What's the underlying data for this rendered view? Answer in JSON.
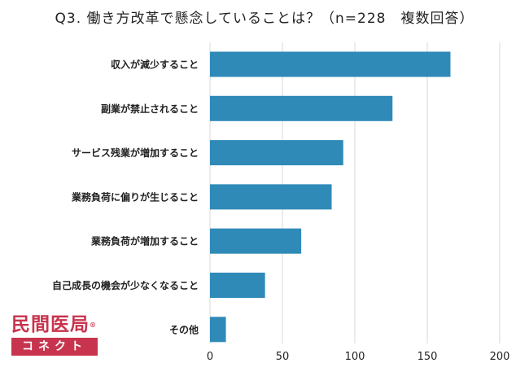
{
  "title": "Q3. 働き方改革で懸念していることは？（n=228　複数回答）",
  "logo": {
    "top": "民間医局",
    "bottom": "コネクト"
  },
  "colors": {
    "bar": "#2f8ab8",
    "grid": "#d9d9d9",
    "axis_text": "#222222"
  },
  "chart_data": {
    "type": "bar",
    "orientation": "horizontal",
    "categories": [
      "収入が減少すること",
      "副業が禁止されること",
      "サービス残業が増加すること",
      "業務負荷に偏りが生じること",
      "業務負荷が増加すること",
      "自己成長の機会が少なくなること",
      "その他"
    ],
    "values": [
      166,
      126,
      92,
      84,
      63,
      38,
      11
    ],
    "xlim": [
      0,
      200
    ],
    "xticks": [
      0,
      50,
      100,
      150,
      200
    ],
    "grid": "vertical"
  }
}
